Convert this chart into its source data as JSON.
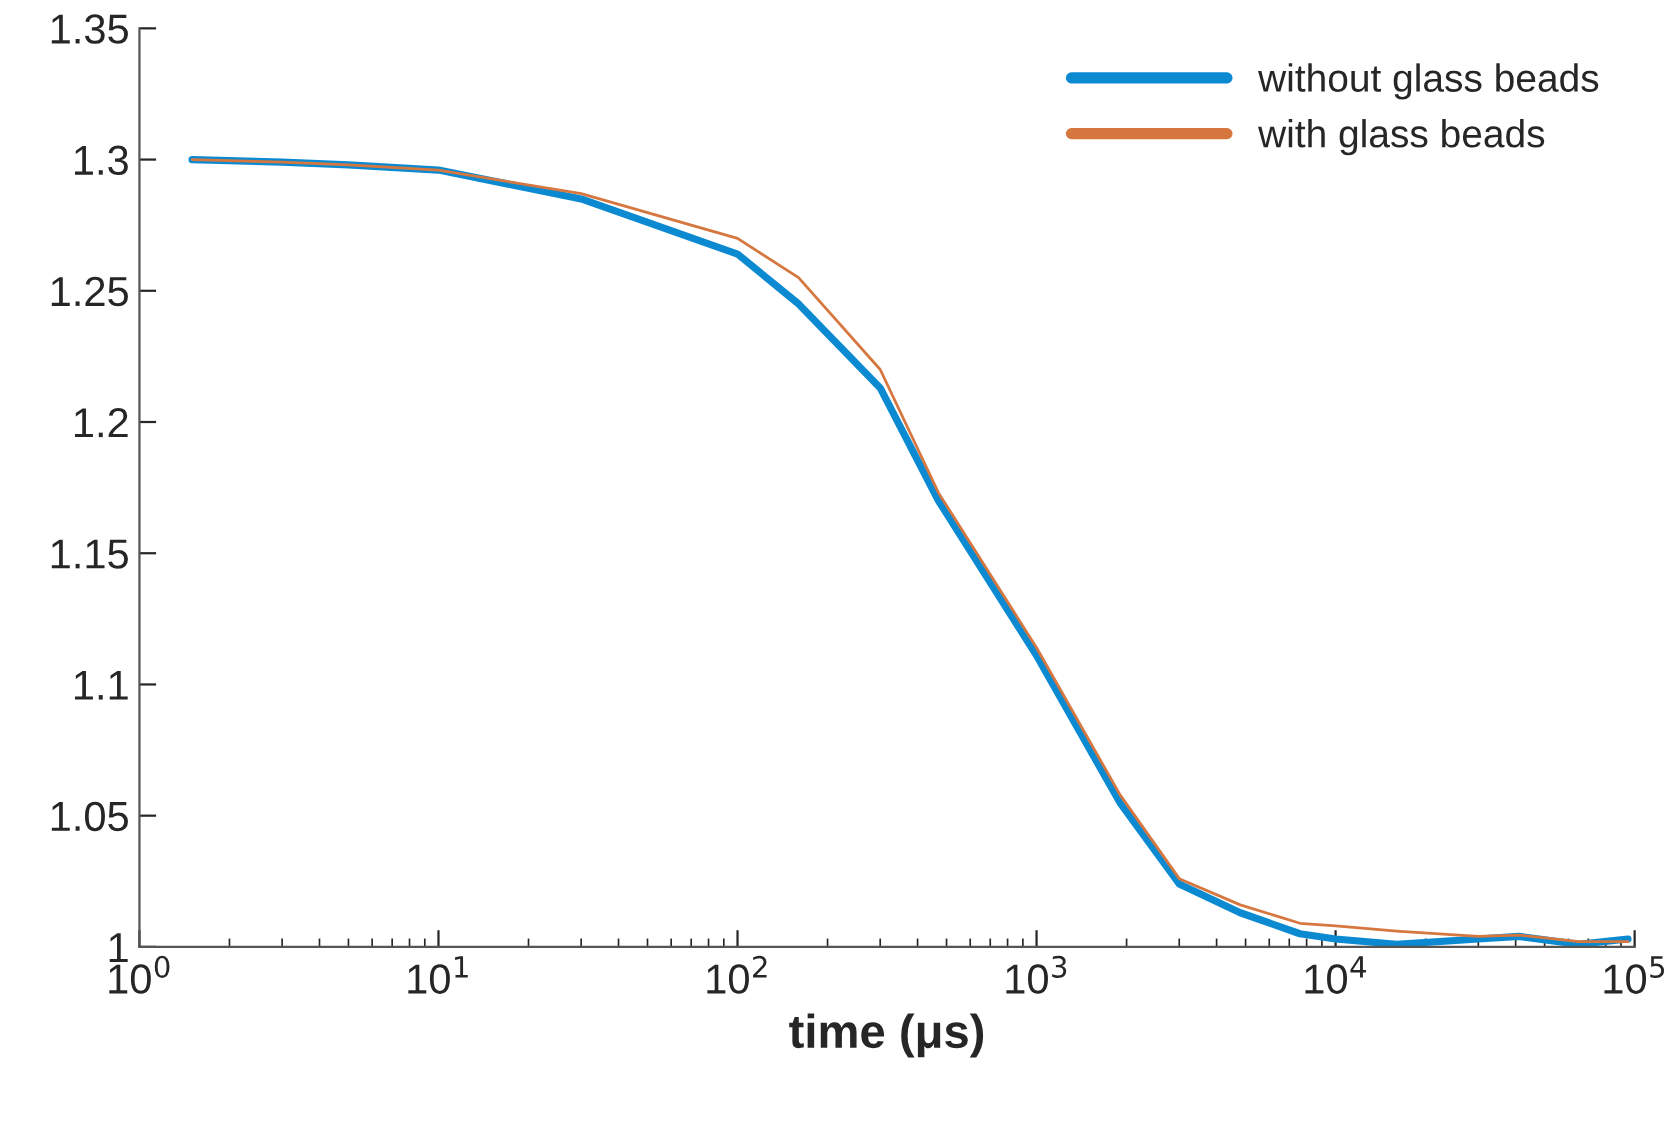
{
  "chart_data": {
    "type": "line",
    "xlabel": "time (μs)",
    "log": "x",
    "x": [
      1.5,
      3,
      5,
      10,
      30,
      100,
      160,
      300,
      470,
      1000,
      1900,
      3000,
      4800,
      7600,
      10000,
      16000,
      30000,
      41000,
      65000,
      95000
    ],
    "series": [
      {
        "name": "without glass beads",
        "color": "#0c8ad1",
        "values": [
          1.3,
          1.299,
          1.298,
          1.296,
          1.285,
          1.264,
          1.245,
          1.213,
          1.17,
          1.111,
          1.055,
          1.024,
          1.013,
          1.005,
          1.003,
          1.001,
          1.003,
          1.004,
          1.001,
          1.003
        ]
      },
      {
        "name": "with glass beads",
        "color": "#d5773f",
        "values": [
          1.3,
          1.299,
          1.298,
          1.296,
          1.287,
          1.27,
          1.255,
          1.22,
          1.173,
          1.114,
          1.058,
          1.026,
          1.016,
          1.009,
          1.008,
          1.006,
          1.004,
          1.0045,
          1.002,
          1.002
        ]
      }
    ],
    "xlim": [
      1,
      100000
    ],
    "xticks": [
      {
        "value": 1,
        "label": "10$^{0}$"
      },
      {
        "value": 10,
        "label": "10$^{1}$"
      },
      {
        "value": 100,
        "label": "10$^{2}$"
      },
      {
        "value": 1000,
        "label": "10$^{3}$"
      },
      {
        "value": 10000,
        "label": "10$^{4}$"
      },
      {
        "value": 100000,
        "label": "10$^{5}$"
      }
    ],
    "ylim": [
      1,
      1.35
    ],
    "yticks": [
      1,
      1.05,
      1.1,
      1.15,
      1.2,
      1.25,
      1.3,
      1.35
    ],
    "legend": "top right",
    "grid": false,
    "marker": "none",
    "line_style": "solid"
  }
}
